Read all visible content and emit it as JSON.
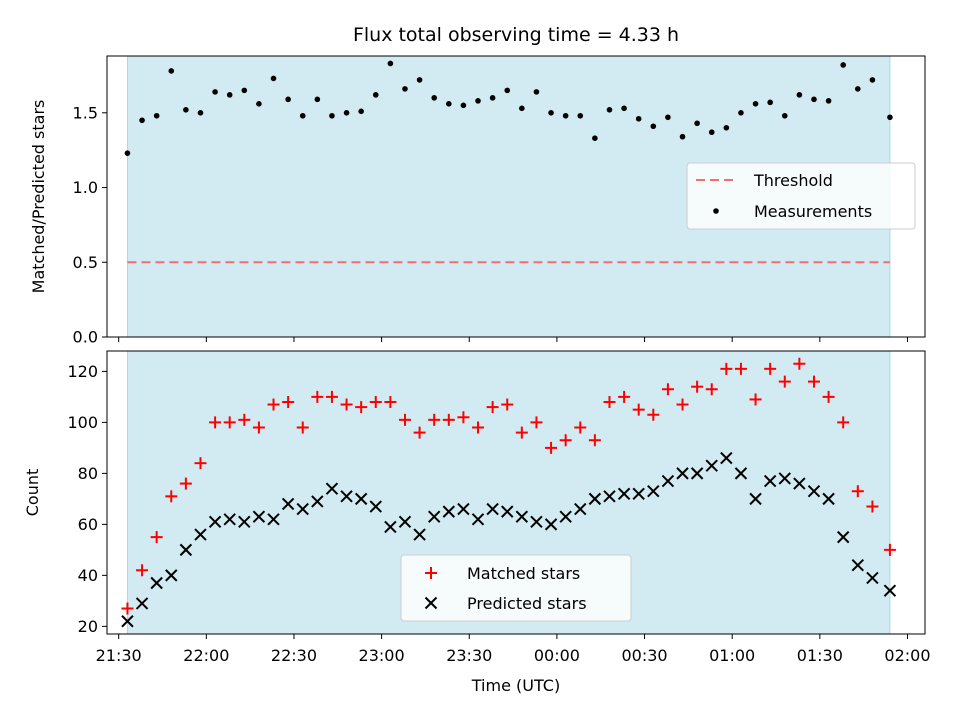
{
  "title": "Flux total observing time = 4.33 h",
  "colors": {
    "shade": "#add8e6",
    "threshold": "#f07070",
    "measurements": "#000000",
    "matched": "#ff0000",
    "predicted": "#000000"
  },
  "chart_data": [
    {
      "type": "scatter",
      "ylabel": "Matched/Predicted stars",
      "xlabel": "",
      "xlim": [
        "21:26",
        "02:06"
      ],
      "ylim": [
        0,
        1.88
      ],
      "yticks": [
        "0.0",
        "0.5",
        "1.0",
        "1.5"
      ],
      "yticks_values": [
        0.0,
        0.5,
        1.0,
        1.5
      ],
      "shaded_span": [
        "21:33",
        "01:54"
      ],
      "grid": false,
      "legend_position": "center-right",
      "threshold": {
        "name": "Threshold",
        "value": 0.5,
        "x_range": [
          "21:33",
          "01:54"
        ],
        "style": "dashed"
      },
      "series": [
        {
          "name": "Measurements",
          "marker": "dot",
          "x": [
            "21:33",
            "21:38",
            "21:43",
            "21:48",
            "21:53",
            "21:58",
            "22:03",
            "22:08",
            "22:13",
            "22:18",
            "22:23",
            "22:28",
            "22:33",
            "22:38",
            "22:43",
            "22:48",
            "22:53",
            "22:58",
            "23:03",
            "23:08",
            "23:13",
            "23:18",
            "23:23",
            "23:28",
            "23:33",
            "23:38",
            "23:43",
            "23:48",
            "23:53",
            "23:58",
            "00:03",
            "00:08",
            "00:13",
            "00:18",
            "00:23",
            "00:28",
            "00:33",
            "00:38",
            "00:43",
            "00:48",
            "00:53",
            "00:58",
            "01:03",
            "01:08",
            "01:13",
            "01:18",
            "01:23",
            "01:28",
            "01:33",
            "01:38",
            "01:43",
            "01:48",
            "01:54"
          ],
          "values": [
            1.23,
            1.45,
            1.48,
            1.78,
            1.52,
            1.5,
            1.64,
            1.62,
            1.65,
            1.56,
            1.73,
            1.59,
            1.48,
            1.59,
            1.48,
            1.5,
            1.51,
            1.62,
            1.83,
            1.66,
            1.72,
            1.6,
            1.56,
            1.55,
            1.58,
            1.6,
            1.65,
            1.53,
            1.64,
            1.5,
            1.48,
            1.48,
            1.33,
            1.52,
            1.53,
            1.46,
            1.41,
            1.47,
            1.34,
            1.43,
            1.37,
            1.4,
            1.5,
            1.56,
            1.57,
            1.48,
            1.62,
            1.59,
            1.58,
            1.82,
            1.66,
            1.72,
            1.47
          ]
        }
      ]
    },
    {
      "type": "scatter",
      "ylabel": "Count",
      "xlabel": "Time (UTC)",
      "xlim": [
        "21:26",
        "02:06"
      ],
      "ylim": [
        17,
        128
      ],
      "yticks": [
        "20",
        "40",
        "60",
        "80",
        "100",
        "120"
      ],
      "yticks_values": [
        20,
        40,
        60,
        80,
        100,
        120
      ],
      "xticks": [
        "21:30",
        "22:00",
        "22:30",
        "23:00",
        "23:30",
        "00:00",
        "00:30",
        "01:00",
        "01:30",
        "02:00"
      ],
      "shaded_span": [
        "21:33",
        "01:54"
      ],
      "grid": false,
      "legend_position": "lower-center",
      "series": [
        {
          "name": "Matched stars",
          "marker": "plus",
          "x": [
            "21:33",
            "21:38",
            "21:43",
            "21:48",
            "21:53",
            "21:58",
            "22:03",
            "22:08",
            "22:13",
            "22:18",
            "22:23",
            "22:28",
            "22:33",
            "22:38",
            "22:43",
            "22:48",
            "22:53",
            "22:58",
            "23:03",
            "23:08",
            "23:13",
            "23:18",
            "23:23",
            "23:28",
            "23:33",
            "23:38",
            "23:43",
            "23:48",
            "23:53",
            "23:58",
            "00:03",
            "00:08",
            "00:13",
            "00:18",
            "00:23",
            "00:28",
            "00:33",
            "00:38",
            "00:43",
            "00:48",
            "00:53",
            "00:58",
            "01:03",
            "01:08",
            "01:13",
            "01:18",
            "01:23",
            "01:28",
            "01:33",
            "01:38",
            "01:43",
            "01:48",
            "01:54"
          ],
          "values": [
            27,
            42,
            55,
            71,
            76,
            84,
            100,
            100,
            101,
            98,
            107,
            108,
            98,
            110,
            110,
            107,
            106,
            108,
            108,
            101,
            96,
            101,
            101,
            102,
            98,
            106,
            107,
            96,
            100,
            90,
            93,
            98,
            93,
            108,
            110,
            105,
            103,
            113,
            107,
            114,
            113,
            121,
            121,
            109,
            121,
            116,
            123,
            116,
            110,
            100,
            73,
            67,
            50
          ]
        },
        {
          "name": "Predicted stars",
          "marker": "x",
          "x": [
            "21:33",
            "21:38",
            "21:43",
            "21:48",
            "21:53",
            "21:58",
            "22:03",
            "22:08",
            "22:13",
            "22:18",
            "22:23",
            "22:28",
            "22:33",
            "22:38",
            "22:43",
            "22:48",
            "22:53",
            "22:58",
            "23:03",
            "23:08",
            "23:13",
            "23:18",
            "23:23",
            "23:28",
            "23:33",
            "23:38",
            "23:43",
            "23:48",
            "23:53",
            "23:58",
            "00:03",
            "00:08",
            "00:13",
            "00:18",
            "00:23",
            "00:28",
            "00:33",
            "00:38",
            "00:43",
            "00:48",
            "00:53",
            "00:58",
            "01:03",
            "01:08",
            "01:13",
            "01:18",
            "01:23",
            "01:28",
            "01:33",
            "01:38",
            "01:43",
            "01:48",
            "01:54"
          ],
          "values": [
            22,
            29,
            37,
            40,
            50,
            56,
            61,
            62,
            61,
            63,
            62,
            68,
            66,
            69,
            74,
            71,
            70,
            67,
            59,
            61,
            56,
            63,
            65,
            66,
            62,
            66,
            65,
            63,
            61,
            60,
            63,
            66,
            70,
            71,
            72,
            72,
            73,
            77,
            80,
            80,
            83,
            86,
            80,
            70,
            77,
            78,
            76,
            73,
            70,
            55,
            44,
            39,
            34
          ]
        }
      ]
    }
  ]
}
